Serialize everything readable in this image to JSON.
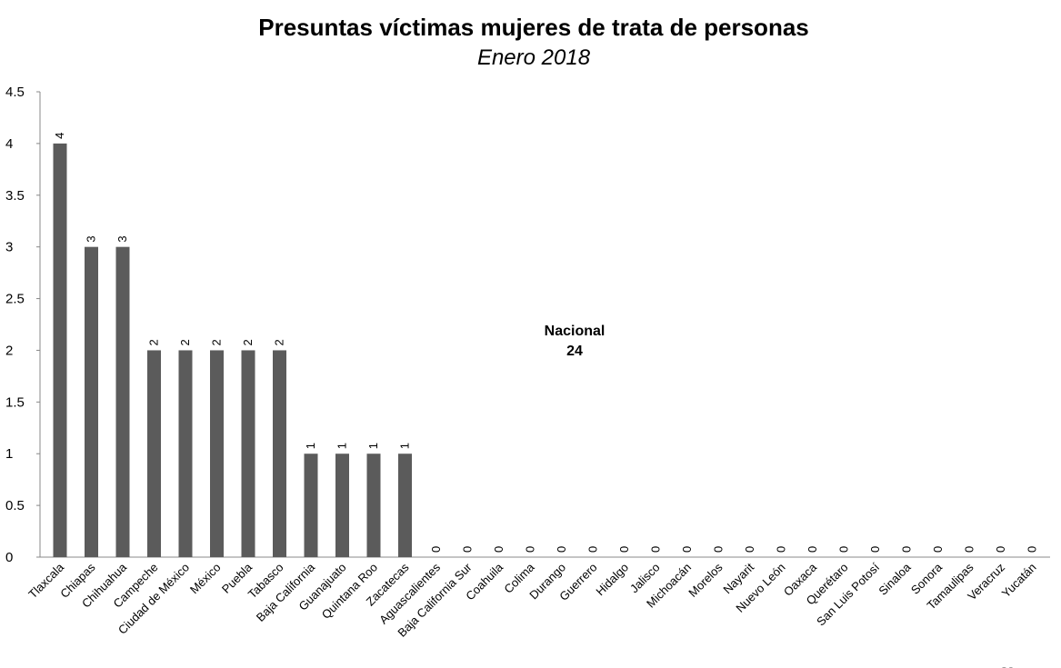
{
  "chart_data": {
    "type": "bar",
    "title": "Presuntas víctimas mujeres de trata de personas",
    "subtitle": "Enero 2018",
    "xlabel": "",
    "ylabel": "",
    "ylim": [
      0,
      4.5
    ],
    "yticks": [
      0,
      0.5,
      1,
      1.5,
      2,
      2.5,
      3,
      3.5,
      4,
      4.5
    ],
    "grid": false,
    "legend": "none",
    "bar_color": "#5b5b5b",
    "categories": [
      "Tlaxcala",
      "Chiapas",
      "Chihuahua",
      "Campeche",
      "Ciudad de México",
      "México",
      "Puebla",
      "Tabasco",
      "Baja California",
      "Guanajuato",
      "Quintana Roo",
      "Zacatecas",
      "Aguascalientes",
      "Baja California Sur",
      "Coahuila",
      "Colima",
      "Durango",
      "Guerrero",
      "Hidalgo",
      "Jalisco",
      "Michoacán",
      "Morelos",
      "Nayarit",
      "Nuevo León",
      "Oaxaca",
      "Querétaro",
      "San Luis Potosí",
      "Sinaloa",
      "Sonora",
      "Tamaulipas",
      "Veracruz",
      "Yucatán"
    ],
    "values": [
      4,
      3,
      3,
      2,
      2,
      2,
      2,
      2,
      1,
      1,
      1,
      1,
      0,
      0,
      0,
      0,
      0,
      0,
      0,
      0,
      0,
      0,
      0,
      0,
      0,
      0,
      0,
      0,
      0,
      0,
      0,
      0
    ],
    "annotation": {
      "line1": "Nacional",
      "line2": "24"
    }
  },
  "page_number": "26"
}
